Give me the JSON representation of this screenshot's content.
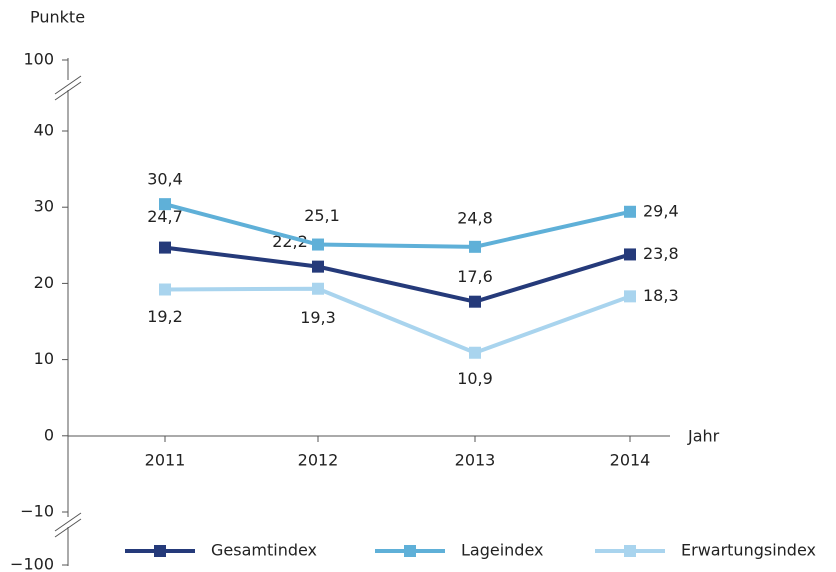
{
  "chart_data": {
    "type": "line",
    "y_label": "Punkte",
    "x_label": "Jahr",
    "categories": [
      "2011",
      "2012",
      "2013",
      "2014"
    ],
    "series": [
      {
        "name": "Gesamtindex",
        "color": "#253a7a",
        "values": [
          24.7,
          22.2,
          17.6,
          23.8
        ],
        "value_labels": [
          "24,7",
          "22,2",
          "17,6",
          "23,8"
        ]
      },
      {
        "name": "Lageindex",
        "color": "#5fb0d8",
        "values": [
          30.4,
          25.1,
          24.8,
          29.4
        ],
        "value_labels": [
          "30,4",
          "25,1",
          "24,8",
          "29,4"
        ]
      },
      {
        "name": "Erwartungsindex",
        "color": "#a9d4ee",
        "values": [
          19.2,
          19.3,
          10.9,
          18.3
        ],
        "value_labels": [
          "19,2",
          "19,3",
          "10,9",
          "18,3"
        ]
      }
    ],
    "ylim": [
      -100,
      100
    ],
    "yticks": [
      {
        "value": -100,
        "label": "−100"
      },
      {
        "value": -10,
        "label": "−10"
      },
      0,
      10,
      20,
      30,
      40,
      100
    ],
    "y_breaks": [
      [
        -100,
        -10
      ],
      [
        40,
        100
      ]
    ],
    "legend": "bottom"
  }
}
